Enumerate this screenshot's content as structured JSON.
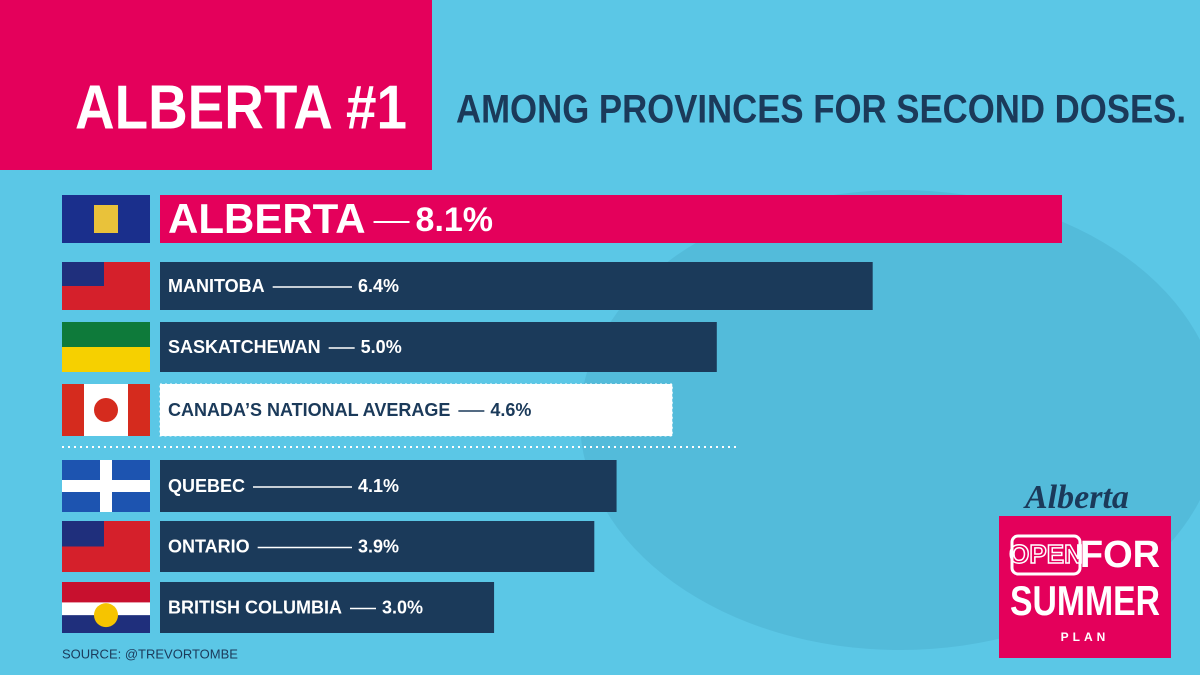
{
  "chart_data": {
    "type": "bar",
    "orientation": "horizontal",
    "title": "ALBERTA #1",
    "subtitle": "AMONG PROVINCES FOR SECOND DOSES.",
    "categories": [
      "ALBERTA",
      "MANITOBA",
      "SASKATCHEWAN",
      "CANADA’S NATIONAL AVERAGE",
      "QUEBEC",
      "ONTARIO",
      "BRITISH COLUMBIA"
    ],
    "values": [
      8.1,
      6.4,
      5.0,
      4.6,
      4.1,
      3.9,
      3.0
    ],
    "value_labels": [
      "8.1%",
      "6.4%",
      "5.0%",
      "4.6%",
      "4.1%",
      "3.9%",
      "3.0%"
    ],
    "colors": [
      "#e4005b",
      "#1b3a5a",
      "#1b3a5a",
      "#ffffff",
      "#1b3a5a",
      "#1b3a5a",
      "#1b3a5a"
    ],
    "source": "SOURCE: @TREVORTOMBE"
  },
  "logo": {
    "brand": "Alberta",
    "open": "OPEN",
    "for": "FOR",
    "summer": "SUMMER",
    "plan": "PLAN"
  }
}
